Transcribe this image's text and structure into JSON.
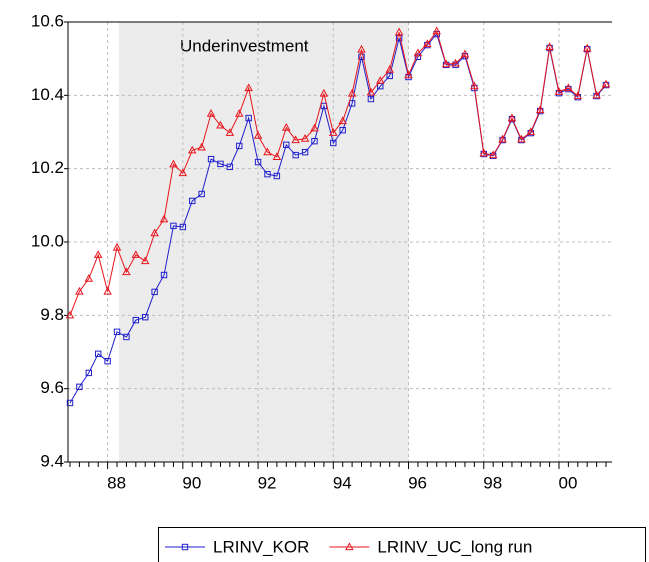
{
  "chart_data": {
    "type": "line",
    "annotation": "Underinvestment",
    "shade": {
      "from": 5,
      "to": 36,
      "color": "#ececec"
    },
    "categories": [
      null,
      null,
      null,
      null,
      "88",
      null,
      null,
      null,
      null,
      null,
      null,
      null,
      "90",
      null,
      null,
      null,
      null,
      null,
      null,
      null,
      "92",
      null,
      null,
      null,
      null,
      null,
      null,
      null,
      "94",
      null,
      null,
      null,
      null,
      null,
      null,
      null,
      "96",
      null,
      null,
      null,
      null,
      null,
      null,
      null,
      "98",
      null,
      null,
      null,
      null,
      null,
      null,
      null,
      "00",
      null,
      null,
      null,
      null,
      null
    ],
    "series": [
      {
        "name": "LRINV_KOR",
        "color": "#1f1fcc",
        "marker": "square",
        "values": [
          9.561,
          9.605,
          9.643,
          9.695,
          9.675,
          9.755,
          9.741,
          9.787,
          9.795,
          9.864,
          9.91,
          10.044,
          10.041,
          10.112,
          10.131,
          10.226,
          10.213,
          10.205,
          10.262,
          10.338,
          10.218,
          10.185,
          10.18,
          10.265,
          10.237,
          10.245,
          10.275,
          10.371,
          10.27,
          10.305,
          10.378,
          10.505,
          10.39,
          10.425,
          10.453,
          10.556,
          10.45,
          10.505,
          10.537,
          10.567,
          10.483,
          10.483,
          10.507,
          10.42,
          10.24,
          10.235,
          10.278,
          10.335,
          10.278,
          10.297,
          10.357,
          10.529,
          10.406,
          10.417,
          10.395,
          10.526,
          10.398,
          10.428
        ]
      },
      {
        "name": "LRINV_UC_long run",
        "color": "#e8141c",
        "marker": "triangle",
        "values": [
          9.8,
          9.865,
          9.9,
          9.965,
          9.865,
          9.985,
          9.918,
          9.965,
          9.948,
          10.024,
          10.062,
          10.212,
          10.188,
          10.25,
          10.258,
          10.35,
          10.318,
          10.298,
          10.35,
          10.42,
          10.29,
          10.245,
          10.232,
          10.312,
          10.278,
          10.282,
          10.31,
          10.405,
          10.298,
          10.33,
          10.405,
          10.525,
          10.408,
          10.44,
          10.47,
          10.572,
          10.455,
          10.515,
          10.54,
          10.575,
          10.485,
          10.487,
          10.512,
          10.425,
          10.242,
          10.237,
          10.28,
          10.338,
          10.28,
          10.3,
          10.36,
          10.532,
          10.41,
          10.42,
          10.398,
          10.528,
          10.4,
          10.43
        ]
      }
    ],
    "ylim": [
      9.4,
      10.6
    ],
    "yticks": [
      9.4,
      9.6,
      9.8,
      {
        "value": 10,
        "label": "10.0"
      },
      10.2,
      10.4,
      10.6
    ],
    "grid": true,
    "legend": "bottom"
  }
}
